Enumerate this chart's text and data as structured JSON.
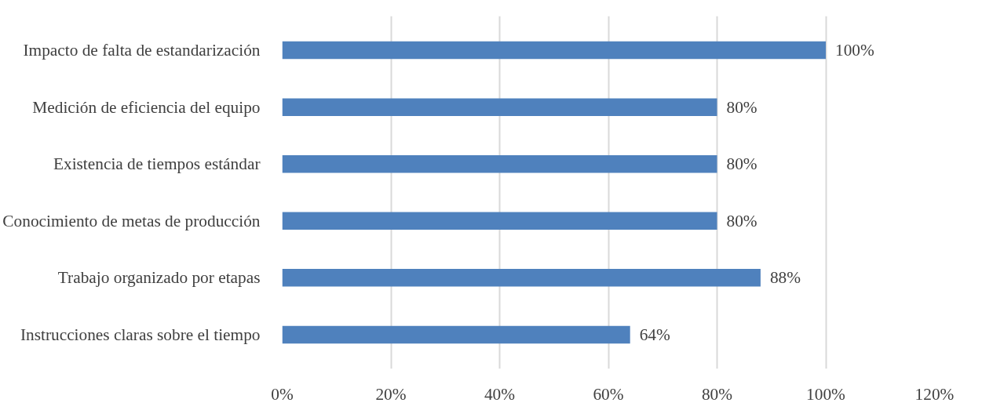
{
  "chart_data": {
    "type": "bar",
    "orientation": "horizontal",
    "categories": [
      "Impacto de falta de estandarización",
      "Medición de eficiencia del equipo",
      "Existencia de tiempos estándar",
      "Conocimiento de metas de producción",
      "Trabajo organizado por etapas",
      "Instrucciones claras sobre el tiempo"
    ],
    "values": [
      100,
      80,
      80,
      80,
      88,
      64
    ],
    "value_labels": [
      "100%",
      "80%",
      "80%",
      "80%",
      "88%",
      "64%"
    ],
    "color": "#4f81bd",
    "xlim": [
      0,
      120
    ],
    "xticks": [
      {
        "value": 0,
        "label": "0%"
      },
      {
        "value": 20,
        "label": "20%"
      },
      {
        "value": 40,
        "label": "40%"
      },
      {
        "value": 60,
        "label": "60%"
      },
      {
        "value": 80,
        "label": "80%"
      },
      {
        "value": 100,
        "label": "100%"
      },
      {
        "value": 120,
        "label": "120%"
      }
    ],
    "grid": "x"
  }
}
